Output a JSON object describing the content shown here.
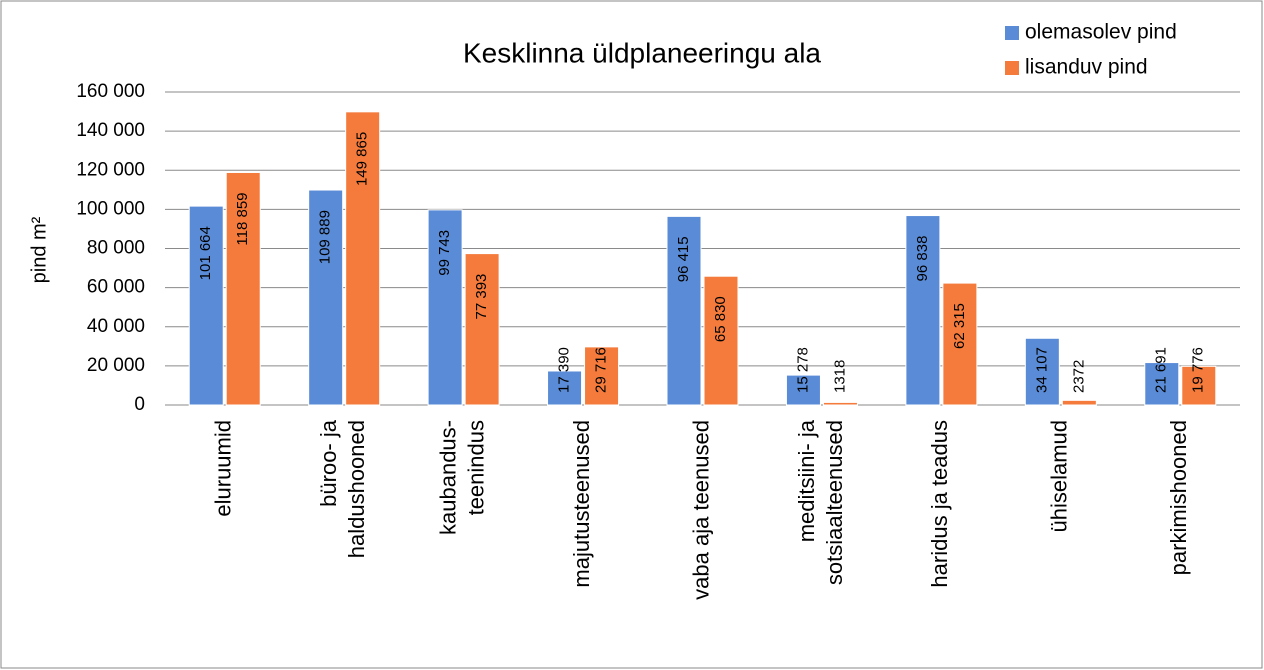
{
  "chart_data": {
    "type": "bar",
    "title": "Kesklinna üldplaneeringu ala",
    "ylabel": "pind m²",
    "categories": [
      [
        "eluruumid"
      ],
      [
        "büroo- ja",
        "haldushooned"
      ],
      [
        "kaubandus-",
        "teenindus"
      ],
      [
        "majutusteenused"
      ],
      [
        "vaba aja teenused"
      ],
      [
        "meditsiini- ja",
        "sotsiaalteenused"
      ],
      [
        "haridus ja teadus"
      ],
      [
        "ühiselamud"
      ],
      [
        "parkimishooned"
      ]
    ],
    "series": [
      {
        "name": "olemasolev pind",
        "color": "#5a8bd6",
        "values": [
          101664,
          109889,
          99743,
          17390,
          96415,
          15278,
          96838,
          34107,
          21691
        ],
        "value_labels": [
          "101 664",
          "109 889",
          "99 743",
          "17 390",
          "96 415",
          "15 278",
          "96 838",
          "34 107",
          "21 691"
        ]
      },
      {
        "name": "lisanduv pind",
        "color": "#f47b3b",
        "values": [
          118859,
          149865,
          77393,
          29716,
          65830,
          1318,
          62315,
          2372,
          19776
        ],
        "value_labels": [
          "118 859",
          "149 865",
          "77 393",
          "29 716",
          "65 830",
          "1318",
          "62 315",
          "2372",
          "19 776"
        ]
      }
    ],
    "ylim": [
      0,
      160000
    ],
    "yticks": [
      0,
      {
        "value": 20000,
        "label": "20 000"
      },
      {
        "value": 40000,
        "label": "40 000"
      },
      {
        "value": 60000,
        "label": "60 000"
      },
      {
        "value": 80000,
        "label": "80 000"
      },
      {
        "value": 100000,
        "label": "100 000"
      },
      {
        "value": 120000,
        "label": "120 000"
      },
      {
        "value": 140000,
        "label": "140 000"
      },
      {
        "value": 160000,
        "label": "160 000"
      }
    ],
    "grid": true,
    "legend": "top-right"
  }
}
